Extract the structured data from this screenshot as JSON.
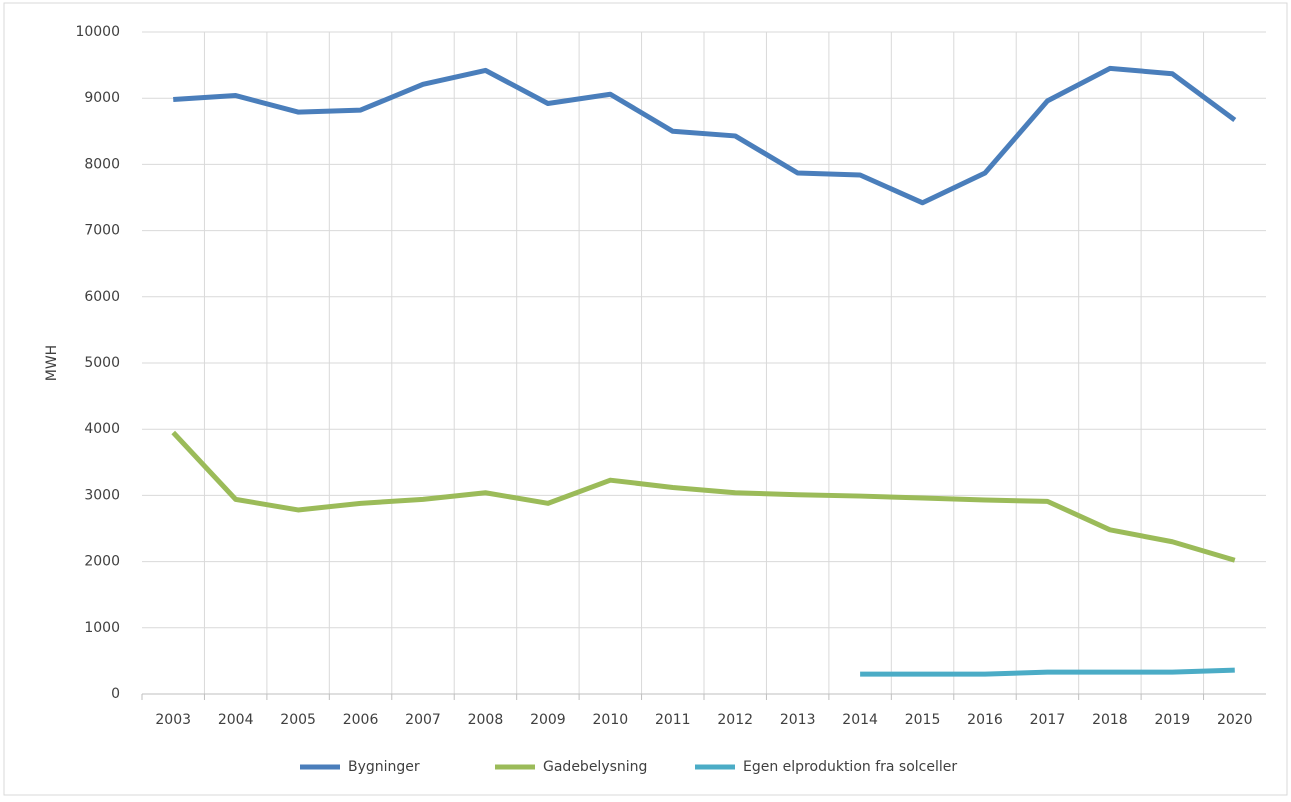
{
  "chart_data": {
    "type": "line",
    "y_label": "MWH",
    "categories": [
      "2003",
      "2004",
      "2005",
      "2006",
      "2007",
      "2008",
      "2009",
      "2010",
      "2011",
      "2012",
      "2013",
      "2014",
      "2015",
      "2016",
      "2017",
      "2018",
      "2019",
      "2020"
    ],
    "series": [
      {
        "name": "Bygninger",
        "color": "#4a7ebb",
        "values": [
          8980,
          9040,
          8790,
          8820,
          9210,
          9420,
          8920,
          9060,
          8500,
          8430,
          7870,
          7840,
          7420,
          7870,
          8960,
          9450,
          9370,
          8670
        ]
      },
      {
        "name": "Gadebelysning",
        "color": "#9bbb59",
        "values": [
          3950,
          2940,
          2780,
          2880,
          2940,
          3040,
          2880,
          3230,
          3120,
          3040,
          3010,
          2990,
          2960,
          2930,
          2910,
          2480,
          2300,
          2020
        ]
      },
      {
        "name": "Egen elproduktion fra solceller",
        "color": "#4bacc6",
        "values": [
          null,
          null,
          null,
          null,
          null,
          null,
          null,
          null,
          null,
          null,
          null,
          300,
          300,
          300,
          330,
          330,
          330,
          360
        ]
      }
    ],
    "ylim": [
      0,
      10000
    ],
    "yticks": [
      0,
      1000,
      2000,
      3000,
      4000,
      5000,
      6000,
      7000,
      8000,
      9000,
      10000
    ],
    "grid": true,
    "legend": "bottom"
  }
}
